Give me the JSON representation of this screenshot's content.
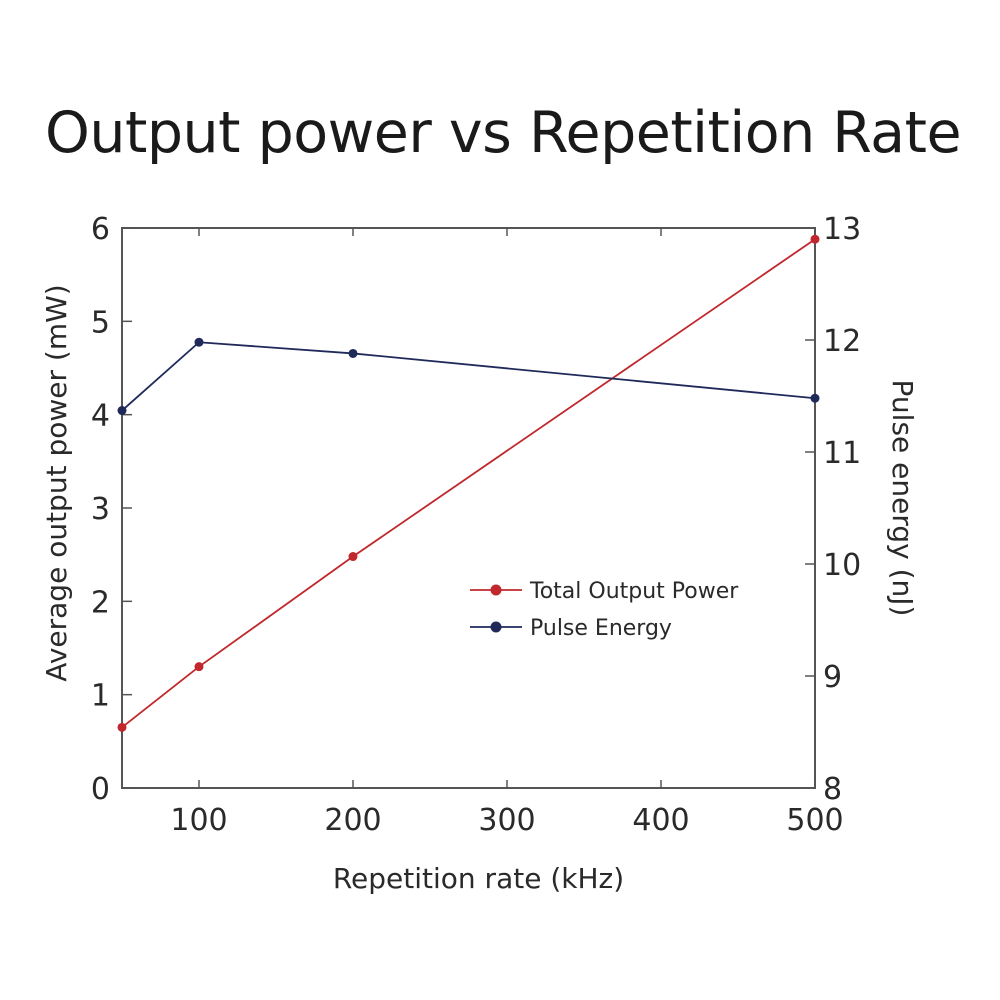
{
  "chart_data": {
    "type": "line",
    "title": "Output power vs Repetition Rate",
    "xlabel": "Repetition rate (kHz)",
    "ylabel_left": "Average output power (mW)",
    "ylabel_right": "Pulse energy (nJ)",
    "xlim": [
      50,
      500
    ],
    "ylim_left": [
      0,
      6
    ],
    "ylim_right": [
      8,
      13
    ],
    "xticks": [
      100,
      200,
      300,
      400,
      500
    ],
    "yticks_left": [
      0,
      1,
      2,
      3,
      4,
      5,
      6
    ],
    "yticks_right": [
      8,
      9,
      10,
      11,
      12,
      13
    ],
    "grid": false,
    "legend_position": "center-right",
    "series": [
      {
        "name": "Total Output Power",
        "axis": "left",
        "color": "#c0282d",
        "x": [
          50,
          100,
          200,
          500
        ],
        "y": [
          0.65,
          1.3,
          2.48,
          5.88
        ]
      },
      {
        "name": "Pulse Energy",
        "axis": "right",
        "color": "#1f2a5a",
        "x": [
          50,
          100,
          200,
          500
        ],
        "y": [
          11.37,
          11.98,
          11.88,
          11.48
        ]
      }
    ]
  }
}
